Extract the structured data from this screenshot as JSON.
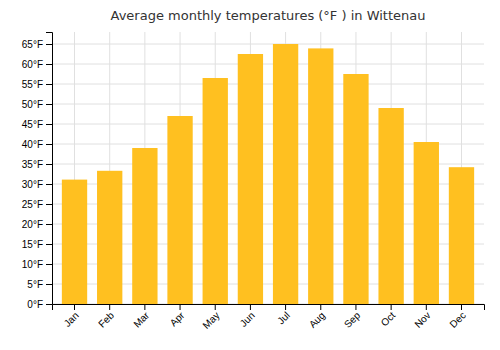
{
  "chart_data": {
    "type": "bar",
    "title": "Average monthly temperatures (°F ) in Wittenau",
    "categories": [
      "Jan",
      "Feb",
      "Mar",
      "Apr",
      "May",
      "Jun",
      "Jul",
      "Aug",
      "Sep",
      "Oct",
      "Nov",
      "Dec"
    ],
    "values": [
      31.1,
      33.3,
      39.0,
      47.0,
      56.5,
      62.5,
      65.0,
      63.9,
      57.5,
      49.0,
      40.5,
      34.2
    ],
    "color": "#FFC020",
    "ylim": [
      0,
      68
    ],
    "yticks": [
      {
        "value": 0,
        "label": "0°F"
      },
      {
        "value": 5,
        "label": "5°F"
      },
      {
        "value": 10,
        "label": "10°F"
      },
      {
        "value": 15,
        "label": "15°F"
      },
      {
        "value": 20,
        "label": "20°F"
      },
      {
        "value": 25,
        "label": "25°F"
      },
      {
        "value": 30,
        "label": "30°F"
      },
      {
        "value": 35,
        "label": "35°F"
      },
      {
        "value": 40,
        "label": "40°F"
      },
      {
        "value": 45,
        "label": "45°F"
      },
      {
        "value": 50,
        "label": "50°F"
      },
      {
        "value": 55,
        "label": "55°F"
      },
      {
        "value": 60,
        "label": "60°F"
      },
      {
        "value": 65,
        "label": "65°F"
      }
    ],
    "grid": true
  }
}
